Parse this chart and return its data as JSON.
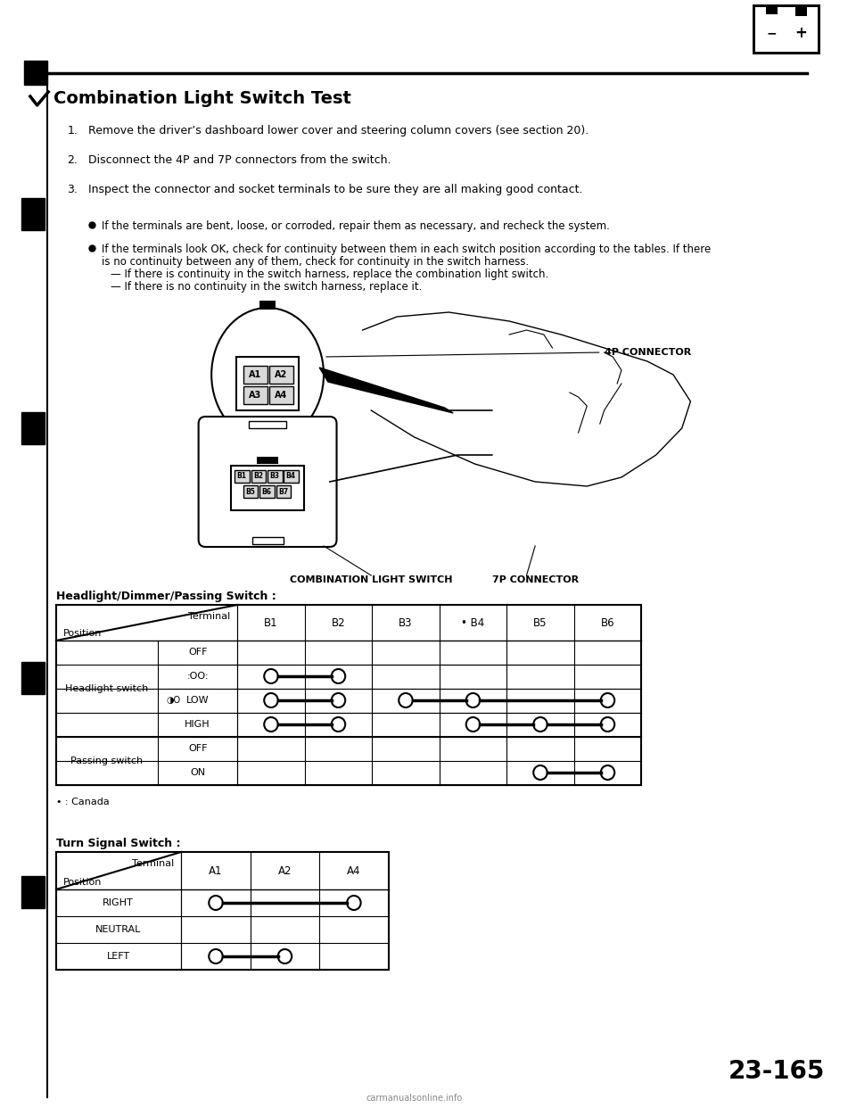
{
  "title": "Combination Light Switch Test",
  "bg_color": "#ffffff",
  "steps": [
    "Remove the driver’s dashboard lower cover and steering column covers (see section 20).",
    "Disconnect the 4P and 7P connectors from the switch.",
    "Inspect the connector and socket terminals to be sure they are all making good contact."
  ],
  "bullet1": "If the terminals are bent, loose, or corroded, repair them as necessary, and recheck the system.",
  "bullet2_line1": "If the terminals look OK, check for continuity between them in each switch position according to the tables. If there",
  "bullet2_line2": "is no continuity between any of them, check for continuity in the switch harness.",
  "bullet2_line3": "— If there is continuity in the switch harness, replace the combination light switch.",
  "bullet2_line4": "— If there is no continuity in the switch harness, replace it.",
  "label_4p": "4P CONNECTOR",
  "label_combo": "COMBINATION LIGHT SWITCH",
  "label_7p": "7P CONNECTOR",
  "table1_title": "Headlight/Dimmer/Passing Switch :",
  "table1_cols": [
    "B1",
    "B2",
    "B3",
    "• B4",
    "B5",
    "B6"
  ],
  "table2_title": "Turn Signal Switch :",
  "table2_cols": [
    "A1",
    "A2",
    "A4"
  ],
  "footnote": "• : Canada",
  "page_number": "23-165",
  "watermark": "carmanualsonline.info"
}
